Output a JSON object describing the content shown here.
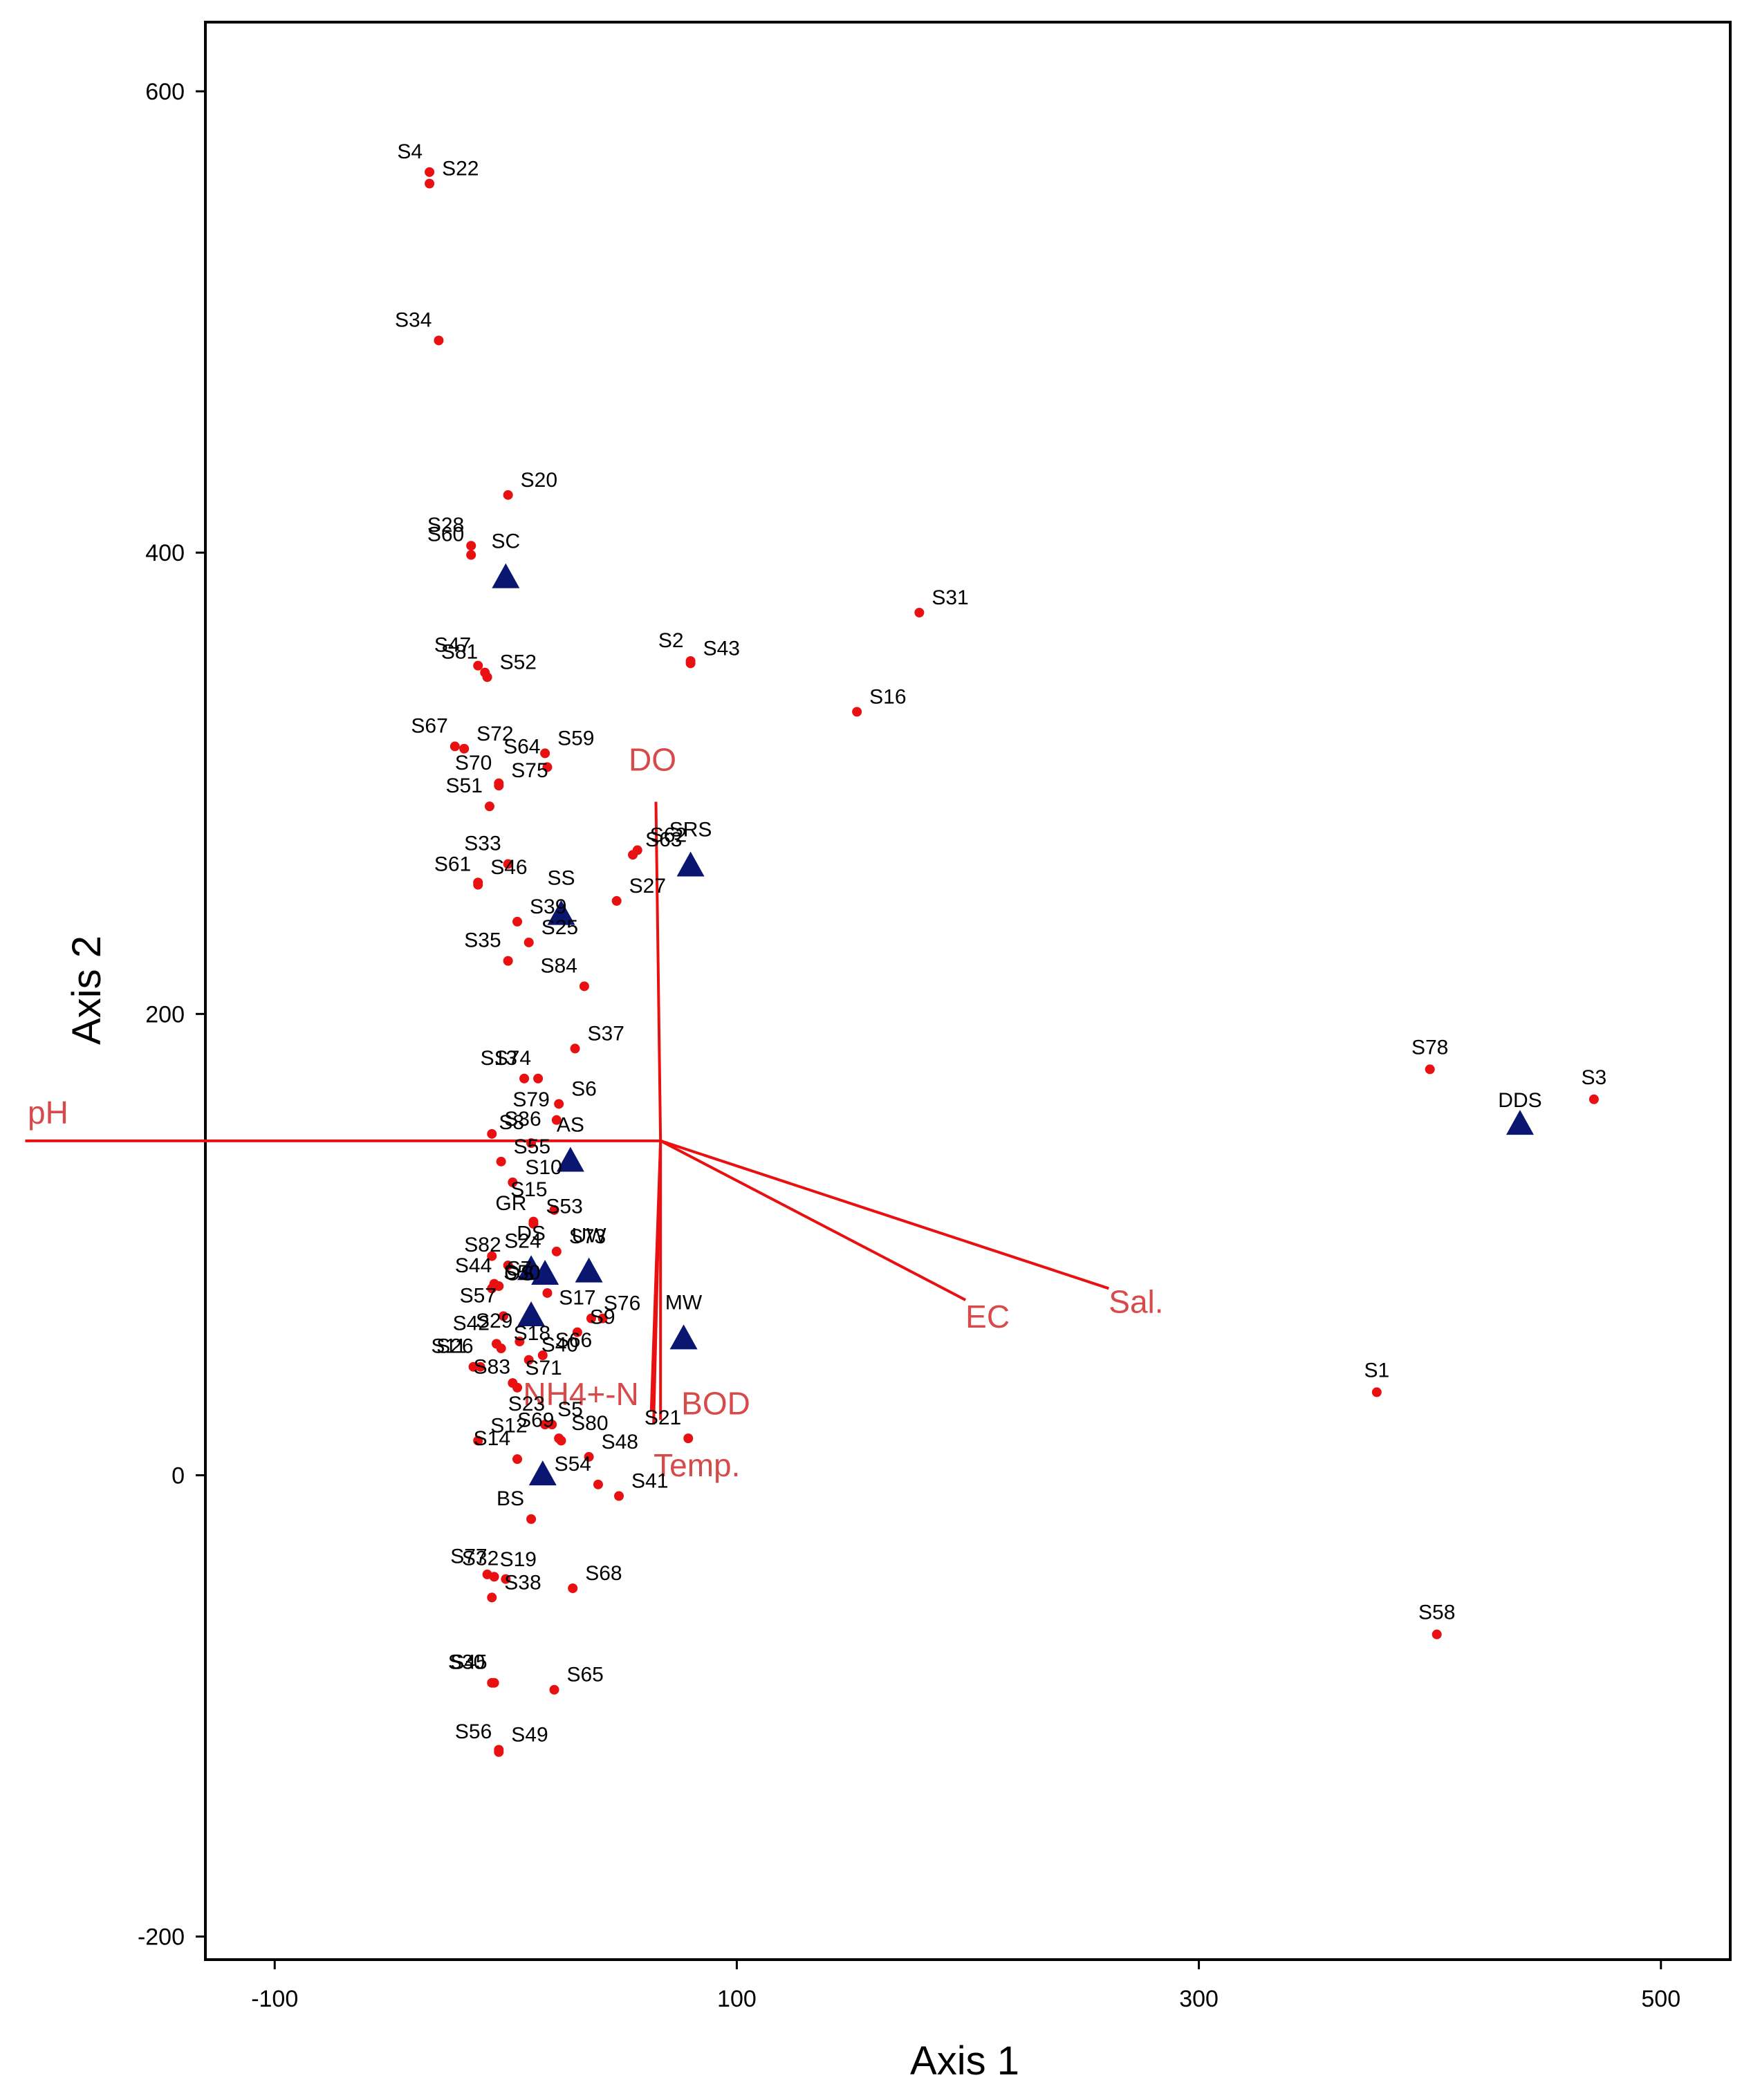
{
  "chart_data": {
    "type": "scatter",
    "title": "",
    "xlabel": "Axis 1",
    "ylabel": "Axis 2",
    "xlim": [
      -130,
      530
    ],
    "ylim": [
      -210,
      630
    ],
    "xticks": [
      -100,
      100,
      300,
      500
    ],
    "yticks": [
      -200,
      0,
      200,
      400,
      600
    ],
    "colors": {
      "sites": "#e81010",
      "groups": "#0a1670",
      "vectors": "#e81010",
      "vector_text": "#d84a4a"
    },
    "sites": [
      {
        "label": "S4",
        "x": -33,
        "y": 565
      },
      {
        "label": "S22",
        "x": -33,
        "y": 560
      },
      {
        "label": "S34",
        "x": -29,
        "y": 492
      },
      {
        "label": "S20",
        "x": 1,
        "y": 425
      },
      {
        "label": "S28",
        "x": -15,
        "y": 403
      },
      {
        "label": "S60",
        "x": -15,
        "y": 399
      },
      {
        "label": "S31",
        "x": 179,
        "y": 374
      },
      {
        "label": "S2",
        "x": 80,
        "y": 353
      },
      {
        "label": "S43",
        "x": 80,
        "y": 352
      },
      {
        "label": "S47",
        "x": -12,
        "y": 351
      },
      {
        "label": "S81",
        "x": -9,
        "y": 348
      },
      {
        "label": "S52",
        "x": -8,
        "y": 346
      },
      {
        "label": "S16",
        "x": 152,
        "y": 331
      },
      {
        "label": "S67",
        "x": -22,
        "y": 316
      },
      {
        "label": "S72",
        "x": -18,
        "y": 315
      },
      {
        "label": "S59",
        "x": 17,
        "y": 313
      },
      {
        "label": "S64",
        "x": 18,
        "y": 307
      },
      {
        "label": "S70",
        "x": -3,
        "y": 300
      },
      {
        "label": "S75",
        "x": -3,
        "y": 299
      },
      {
        "label": "S51",
        "x": -7,
        "y": 290
      },
      {
        "label": "S62",
        "x": 57,
        "y": 271
      },
      {
        "label": "S63",
        "x": 55,
        "y": 269
      },
      {
        "label": "S33",
        "x": 1,
        "y": 265
      },
      {
        "label": "S46",
        "x": -12,
        "y": 257
      },
      {
        "label": "S61",
        "x": -12,
        "y": 256
      },
      {
        "label": "S27",
        "x": 48,
        "y": 249
      },
      {
        "label": "S39",
        "x": 5,
        "y": 240
      },
      {
        "label": "S35",
        "x": 1,
        "y": 223
      },
      {
        "label": "S25",
        "x": 10,
        "y": 231
      },
      {
        "label": "S84",
        "x": 34,
        "y": 212
      },
      {
        "label": "S37",
        "x": 30,
        "y": 185
      },
      {
        "label": "S74",
        "x": 14,
        "y": 172
      },
      {
        "label": "S13",
        "x": 8,
        "y": 172
      },
      {
        "label": "S6",
        "x": 23,
        "y": 161
      },
      {
        "label": "S36",
        "x": -6,
        "y": 148
      },
      {
        "label": "S79",
        "x": 22,
        "y": 154
      },
      {
        "label": "S55",
        "x": -2,
        "y": 136
      },
      {
        "label": "S8",
        "x": 11,
        "y": 144
      },
      {
        "label": "S10",
        "x": 3,
        "y": 127
      },
      {
        "label": "S15",
        "x": 21,
        "y": 115
      },
      {
        "label": "S53",
        "x": 12,
        "y": 110
      },
      {
        "label": "GR",
        "x": 12,
        "y": 109
      },
      {
        "label": "S24",
        "x": -6,
        "y": 95
      },
      {
        "label": "S82",
        "x": 1,
        "y": 91
      },
      {
        "label": "S7",
        "x": -5,
        "y": 83
      },
      {
        "label": "S44",
        "x": -3,
        "y": 82
      },
      {
        "label": "OS",
        "x": -6,
        "y": 81
      },
      {
        "label": "S50",
        "x": 18,
        "y": 79
      },
      {
        "label": "S73",
        "x": 22,
        "y": 97
      },
      {
        "label": "S57",
        "x": -1,
        "y": 69
      },
      {
        "label": "S76",
        "x": 37,
        "y": 68
      },
      {
        "label": "S17",
        "x": 42,
        "y": 68
      },
      {
        "label": "S42",
        "x": -4,
        "y": 57
      },
      {
        "label": "S18",
        "x": -2,
        "y": 55
      },
      {
        "label": "S29",
        "x": 6,
        "y": 58
      },
      {
        "label": "S9",
        "x": 31,
        "y": 62
      },
      {
        "label": "S11",
        "x": -14,
        "y": 47
      },
      {
        "label": "S26",
        "x": -11,
        "y": 47
      },
      {
        "label": "S40",
        "x": 10,
        "y": 50
      },
      {
        "label": "S66",
        "x": 16,
        "y": 52
      },
      {
        "label": "S71",
        "x": 3,
        "y": 40
      },
      {
        "label": "S83",
        "x": 5,
        "y": 38
      },
      {
        "label": "S5",
        "x": 17,
        "y": 22
      },
      {
        "label": "S23",
        "x": 20,
        "y": 22
      },
      {
        "label": "S12",
        "x": -12,
        "y": 15
      },
      {
        "label": "S69",
        "x": 24,
        "y": 15
      },
      {
        "label": "S80",
        "x": 23,
        "y": 16
      },
      {
        "label": "S21",
        "x": 79,
        "y": 16
      },
      {
        "label": "S14",
        "x": 5,
        "y": 7
      },
      {
        "label": "S48",
        "x": 36,
        "y": 8
      },
      {
        "label": "S54",
        "x": 40,
        "y": -4
      },
      {
        "label": "S41",
        "x": 49,
        "y": -9
      },
      {
        "label": "BS",
        "x": 11,
        "y": -19
      },
      {
        "label": "S19",
        "x": -8,
        "y": -43
      },
      {
        "label": "S32",
        "x": 0,
        "y": -45
      },
      {
        "label": "S77",
        "x": -5,
        "y": -44
      },
      {
        "label": "S68",
        "x": 29,
        "y": -49
      },
      {
        "label": "S38",
        "x": -6,
        "y": -53
      },
      {
        "label": "S30",
        "x": -6,
        "y": -90
      },
      {
        "label": "S45",
        "x": -5,
        "y": -90
      },
      {
        "label": "S65",
        "x": 21,
        "y": -93
      },
      {
        "label": "S49",
        "x": -3,
        "y": -119
      },
      {
        "label": "S56",
        "x": -3,
        "y": -120
      },
      {
        "label": "S78",
        "x": 400,
        "y": 176
      },
      {
        "label": "S3",
        "x": 471,
        "y": 163
      },
      {
        "label": "S1",
        "x": 377,
        "y": 36
      },
      {
        "label": "S58",
        "x": 403,
        "y": -69
      }
    ],
    "site_label_text": [
      "S4",
      "S22",
      "S34",
      "S20",
      "S28",
      "SC",
      "S60",
      "S31",
      "S2",
      "S43",
      "S47",
      "S52",
      "S81",
      "S16",
      "S67",
      "S59",
      "S64",
      "S72",
      "S70",
      "S75",
      "S51",
      "S62",
      "S33",
      "S63",
      "SRS",
      "S46",
      "SS",
      "S27",
      "S61",
      "S39",
      "S35",
      "S25",
      "S84",
      "S37",
      "S74",
      "S6",
      "S13",
      "S36",
      "S79",
      "S55",
      "S8",
      "S10",
      "S15",
      "S53",
      "GR",
      "S24",
      "DS",
      "UW",
      "S82",
      "S7",
      "S44",
      "OS",
      "S50",
      "S73",
      "S57",
      "S76",
      "S17",
      "MW",
      "S42",
      "S18",
      "S29",
      "S9",
      "S11",
      "S40",
      "S26",
      "S66",
      "S83",
      "S71",
      "S23",
      "S5",
      "S21",
      "S12",
      "S69",
      "S80",
      "S14",
      "S48",
      "S54",
      "S41",
      "BS",
      "S19",
      "S32",
      "S68",
      "S77",
      "S38",
      "S30",
      "S65",
      "S45",
      "S49",
      "S56",
      "S78",
      "DDS",
      "S3",
      "S1",
      "S58",
      "AS"
    ],
    "groups": [
      {
        "label": "SC",
        "x": 0,
        "y": 390
      },
      {
        "label": "SRS",
        "x": 80,
        "y": 265
      },
      {
        "label": "SS",
        "x": 24,
        "y": 244
      },
      {
        "label": "AS",
        "x": 28,
        "y": 137
      },
      {
        "label": "DS",
        "x": 11,
        "y": 90
      },
      {
        "label": "UW",
        "x": 36,
        "y": 89
      },
      {
        "label": "",
        "x": 17,
        "y": 88
      },
      {
        "label": "",
        "x": 11,
        "y": 70
      },
      {
        "label": "MW",
        "x": 77,
        "y": 60
      },
      {
        "label": "",
        "x": 16,
        "y": 1
      },
      {
        "label": "DDS",
        "x": 439,
        "y": 153
      }
    ],
    "vectors": [
      {
        "label": "pH",
        "x": -208,
        "y": 145
      },
      {
        "label": "DO",
        "x": 65,
        "y": 292
      },
      {
        "label": "Sal.",
        "x": 261,
        "y": 81
      },
      {
        "label": "EC",
        "x": 199,
        "y": 76
      },
      {
        "label": "BOD",
        "x": 67,
        "y": 24
      },
      {
        "label": "NH4+-N",
        "x": 63,
        "y": 28
      },
      {
        "label": "Temp.",
        "x": 64,
        "y": 22
      }
    ],
    "vector_origin": {
      "x": 67,
      "y": 145
    }
  }
}
